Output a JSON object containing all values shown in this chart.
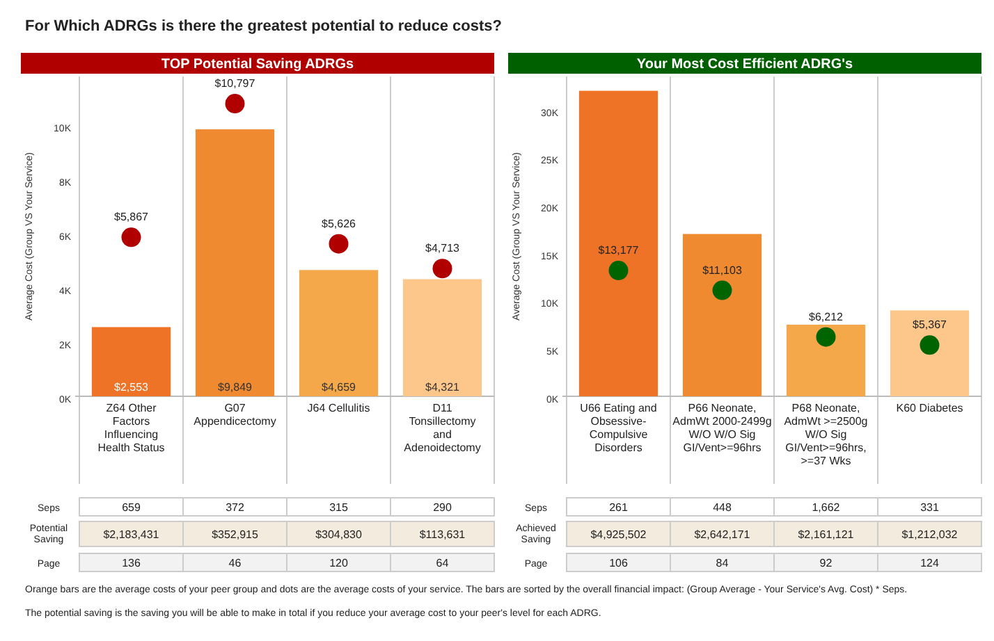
{
  "chart_data": [
    {
      "type": "other",
      "title": "For Which ADRGs is there the greatest potential to reduce costs?",
      "annotations": [
        "Orange bars are the average costs of your peer group and dots are the average costs of your service. The bars are sorted by the overall financial impact: (Group Average - Your Service's Avg. Cost) * Seps.",
        "The potential saving is the saving you will be able to make in total if you reduce your average cost to your peer's level for each ADRG."
      ]
    },
    {
      "type": "bar",
      "title": "TOP Potential Saving ADRGs",
      "ylabel": "Average Cost (Group VS Your Service)",
      "categories": [
        "Z64 Other Factors Influencing Health Status",
        "G07 Appendicectomy",
        "J64 Cellulitis",
        "D11 Tonsillectomy and Adenoidectomy"
      ],
      "ylim": [
        0,
        11800
      ],
      "yticks": [
        {
          "value": 0,
          "label": "0K"
        },
        {
          "value": 2000,
          "label": "2K"
        },
        {
          "value": 4000,
          "label": "4K"
        },
        {
          "value": 6000,
          "label": "6K"
        },
        {
          "value": 8000,
          "label": "8K"
        },
        {
          "value": 10000,
          "label": "10K"
        }
      ],
      "marker": "circle",
      "series": [
        {
          "type": "bar",
          "colors": [
            "#ee7326",
            "#f08a30",
            "#f4a84a",
            "#fdc68a"
          ],
          "values": [
            2553,
            9849,
            4659,
            4321
          ],
          "value_labels": [
            "$2,553",
            "$9,849",
            "$4,659",
            "$4,321"
          ]
        },
        {
          "type": "scatter",
          "color": "#b00000",
          "values": [
            5867,
            10797,
            5626,
            4713
          ],
          "value_labels": [
            "$5,867",
            "$10,797",
            "$5,626",
            "$4,713"
          ]
        }
      ],
      "annotations": [
        "Seps",
        "659",
        "372",
        "315",
        "290",
        "Potential Saving",
        "$2,183,431",
        "$352,915",
        "$304,830",
        "$113,631",
        "Page",
        "136",
        "46",
        "120",
        "64"
      ]
    },
    {
      "type": "bar",
      "title": "Your Most Cost Efficient ADRG's",
      "ylabel": "Average Cost (Group VS Your Service)",
      "categories": [
        "U66 Eating and Obsessive-Compulsive Disorders",
        "P66 Neonate, AdmWt 2000-2499g W/O W/O Sig GI/Vent>=96hrs",
        "P68 Neonate, AdmWt >=2500g W/O Sig GI/Vent>=96hrs, >=37 Wks",
        "K60 Diabetes"
      ],
      "ylim": [
        0,
        33500
      ],
      "yticks": [
        {
          "value": 0,
          "label": "0K"
        },
        {
          "value": 5000,
          "label": "5K"
        },
        {
          "value": 10000,
          "label": "10K"
        },
        {
          "value": 15000,
          "label": "15K"
        },
        {
          "value": 20000,
          "label": "20K"
        },
        {
          "value": 25000,
          "label": "25K"
        },
        {
          "value": 30000,
          "label": "30K"
        }
      ],
      "marker": "circle",
      "series": [
        {
          "type": "bar",
          "colors": [
            "#ee7326",
            "#f08a30",
            "#f4a84a",
            "#fdc68a"
          ],
          "values": [
            32000,
            17000,
            7500,
            9000
          ]
        },
        {
          "type": "scatter",
          "color": "#006400",
          "values": [
            13177,
            11103,
            6212,
            5367
          ],
          "value_labels": [
            "$13,177",
            "$11,103",
            "$6,212",
            "$5,367"
          ]
        }
      ],
      "annotations": [
        "Seps",
        "261",
        "448",
        "1,662",
        "331",
        "Achieved Saving",
        "$4,925,502",
        "$2,642,171",
        "$2,161,121",
        "$1,212,032",
        "Page",
        "106",
        "84",
        "92",
        "124"
      ]
    }
  ]
}
